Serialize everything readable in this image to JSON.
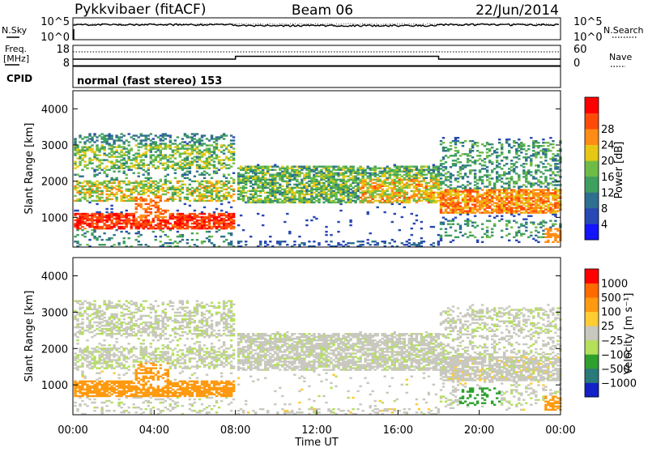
{
  "header": {
    "station": "Pykkvibaer (fitACF)",
    "beam": "Beam 06",
    "date": "22/Jun/2014"
  },
  "left_labels": {
    "nsky": "N.Sky",
    "freq_line1": "Freq.",
    "freq_line2": "[MHz]",
    "cpid": "CPID"
  },
  "right_labels": {
    "nsearch": "N.Search",
    "nave": "Nave"
  },
  "cpid_text": "normal (fast stereo) 153",
  "colors": {
    "power": [
      "#1414ff",
      "#2848b4",
      "#2f6f8f",
      "#3f9f5f",
      "#6ebc46",
      "#e6c814",
      "#ff8c14",
      "#ff4a0a",
      "#ff0000"
    ],
    "velocity": [
      "#ff0000",
      "#ff6a00",
      "#ff9a10",
      "#ffcc33",
      "#c8c8be",
      "#b4e05a",
      "#2ea02e",
      "#2a7a7a",
      "#1420c8"
    ]
  },
  "chart_data": [
    {
      "type": "line",
      "name": "noise",
      "y_ticks_left": [
        "10^5",
        "10^0"
      ],
      "y_ticks_right": [
        "10^5",
        "10^0"
      ]
    },
    {
      "type": "line",
      "name": "frequency",
      "y_ticks_left": [
        "18",
        "8"
      ],
      "y_ticks_right": [
        "60",
        "0"
      ],
      "ylim_left": [
        8,
        18
      ],
      "ylim_right": [
        0,
        60
      ],
      "step_times": [
        0,
        8,
        18,
        24
      ]
    },
    {
      "type": "heatmap",
      "name": "power",
      "ylabel": "Slant Range [km]",
      "xlim": [
        0,
        24
      ],
      "ylim": [
        180,
        4500
      ],
      "y_ticks": [
        1000,
        2000,
        3000,
        4000
      ],
      "colorbar": {
        "label": "Power [dB]",
        "ticks": [
          "4",
          "8",
          "12",
          "16",
          "20",
          "24",
          "28"
        ]
      }
    },
    {
      "type": "heatmap",
      "name": "velocity",
      "ylabel": "Slant Range [km]",
      "xlabel": "Time UT",
      "xlim": [
        0,
        24
      ],
      "ylim": [
        180,
        4500
      ],
      "y_ticks": [
        1000,
        2000,
        3000,
        4000
      ],
      "x_ticks": [
        "00:00",
        "04:00",
        "08:00",
        "12:00",
        "16:00",
        "20:00",
        "00:00"
      ],
      "colorbar": {
        "label": "Velocity [m s⁻¹]",
        "ticks": [
          "1000",
          "500",
          "100",
          "25",
          "−25",
          "−100",
          "−500",
          "−1000"
        ]
      }
    }
  ]
}
